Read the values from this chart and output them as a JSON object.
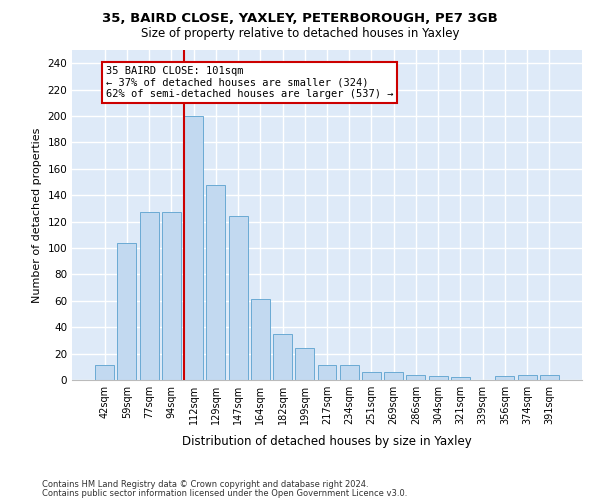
{
  "title": "35, BAIRD CLOSE, YAXLEY, PETERBOROUGH, PE7 3GB",
  "subtitle": "Size of property relative to detached houses in Yaxley",
  "xlabel": "Distribution of detached houses by size in Yaxley",
  "ylabel": "Number of detached properties",
  "bar_color": "#c2d9f0",
  "bar_edge_color": "#6aaad4",
  "background_color": "#deeaf8",
  "grid_color": "#ffffff",
  "categories": [
    "42sqm",
    "59sqm",
    "77sqm",
    "94sqm",
    "112sqm",
    "129sqm",
    "147sqm",
    "164sqm",
    "182sqm",
    "199sqm",
    "217sqm",
    "234sqm",
    "251sqm",
    "269sqm",
    "286sqm",
    "304sqm",
    "321sqm",
    "339sqm",
    "356sqm",
    "374sqm",
    "391sqm"
  ],
  "values": [
    11,
    104,
    127,
    127,
    200,
    148,
    124,
    61,
    35,
    24,
    11,
    11,
    6,
    6,
    4,
    3,
    2,
    0,
    3,
    4,
    4
  ],
  "ylim": [
    0,
    250
  ],
  "yticks": [
    0,
    20,
    40,
    60,
    80,
    100,
    120,
    140,
    160,
    180,
    200,
    220,
    240
  ],
  "annotation_line1": "35 BAIRD CLOSE: 101sqm",
  "annotation_line2": "← 37% of detached houses are smaller (324)",
  "annotation_line3": "62% of semi-detached houses are larger (537) →",
  "marker_color": "#cc0000",
  "footer1": "Contains HM Land Registry data © Crown copyright and database right 2024.",
  "footer2": "Contains public sector information licensed under the Open Government Licence v3.0."
}
